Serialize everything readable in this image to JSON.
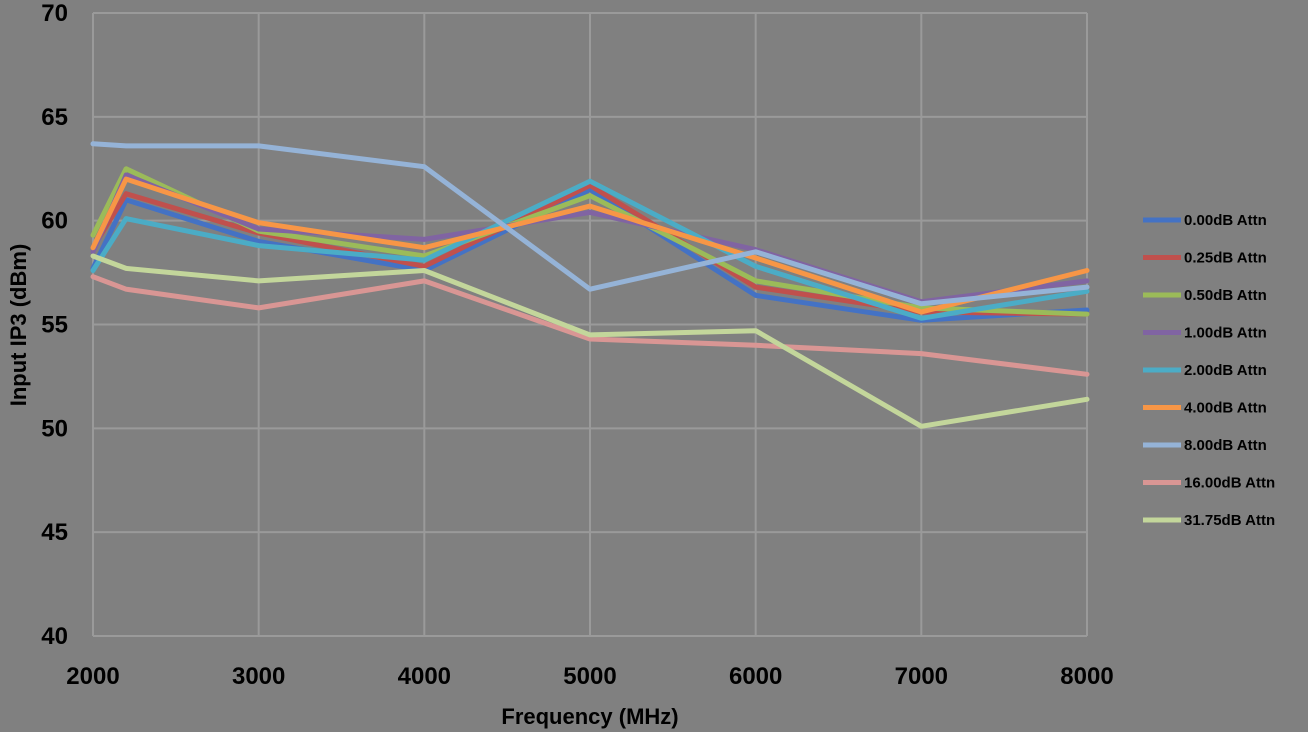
{
  "chart_data": {
    "type": "line",
    "title": "",
    "xlabel": "Frequency (MHz)",
    "ylabel": "Input IP3 (dBm)",
    "x_ticks": [
      2000,
      3000,
      4000,
      5000,
      6000,
      7000,
      8000
    ],
    "y_ticks": [
      40,
      45,
      50,
      55,
      60,
      65,
      70
    ],
    "xlim": [
      2000,
      8000
    ],
    "ylim": [
      40,
      70
    ],
    "grid": true,
    "legend_position": "right",
    "x": [
      2000,
      2200,
      3000,
      4000,
      5000,
      6000,
      7000,
      8000
    ],
    "series": [
      {
        "name": "0.00dB Attn",
        "color": "#4472C4",
        "values": [
          57.7,
          61.0,
          59.0,
          57.6,
          61.5,
          56.4,
          55.2,
          55.7
        ]
      },
      {
        "name": "0.25dB Attn",
        "color": "#C0504D",
        "values": [
          58.7,
          61.3,
          59.4,
          57.8,
          61.7,
          56.8,
          55.6,
          55.5
        ]
      },
      {
        "name": "0.50dB Attn",
        "color": "#9BBB59",
        "values": [
          59.3,
          62.5,
          59.5,
          58.3,
          61.2,
          57.1,
          55.8,
          55.5
        ]
      },
      {
        "name": "1.00dB Attn",
        "color": "#8064A2",
        "values": [
          58.5,
          62.2,
          59.6,
          59.1,
          60.4,
          58.6,
          56.1,
          57.1
        ]
      },
      {
        "name": "2.00dB Attn",
        "color": "#4BACC6",
        "values": [
          57.6,
          60.1,
          58.8,
          58.1,
          61.9,
          57.8,
          55.3,
          56.6
        ]
      },
      {
        "name": "4.00dB Attn",
        "color": "#F79646",
        "values": [
          58.7,
          62.0,
          59.9,
          58.7,
          60.7,
          58.2,
          55.6,
          57.6
        ]
      },
      {
        "name": "8.00dB Attn",
        "color": "#95B3D7",
        "values": [
          63.7,
          63.6,
          63.6,
          62.6,
          56.7,
          58.5,
          56.0,
          56.8
        ]
      },
      {
        "name": "16.00dB Attn",
        "color": "#D99694",
        "values": [
          57.3,
          56.7,
          55.8,
          57.1,
          54.3,
          54.0,
          53.6,
          52.6
        ]
      },
      {
        "name": "31.75dB Attn",
        "color": "#C3D69B",
        "values": [
          58.3,
          57.7,
          57.1,
          57.6,
          54.5,
          54.7,
          50.1,
          51.4
        ]
      }
    ]
  }
}
